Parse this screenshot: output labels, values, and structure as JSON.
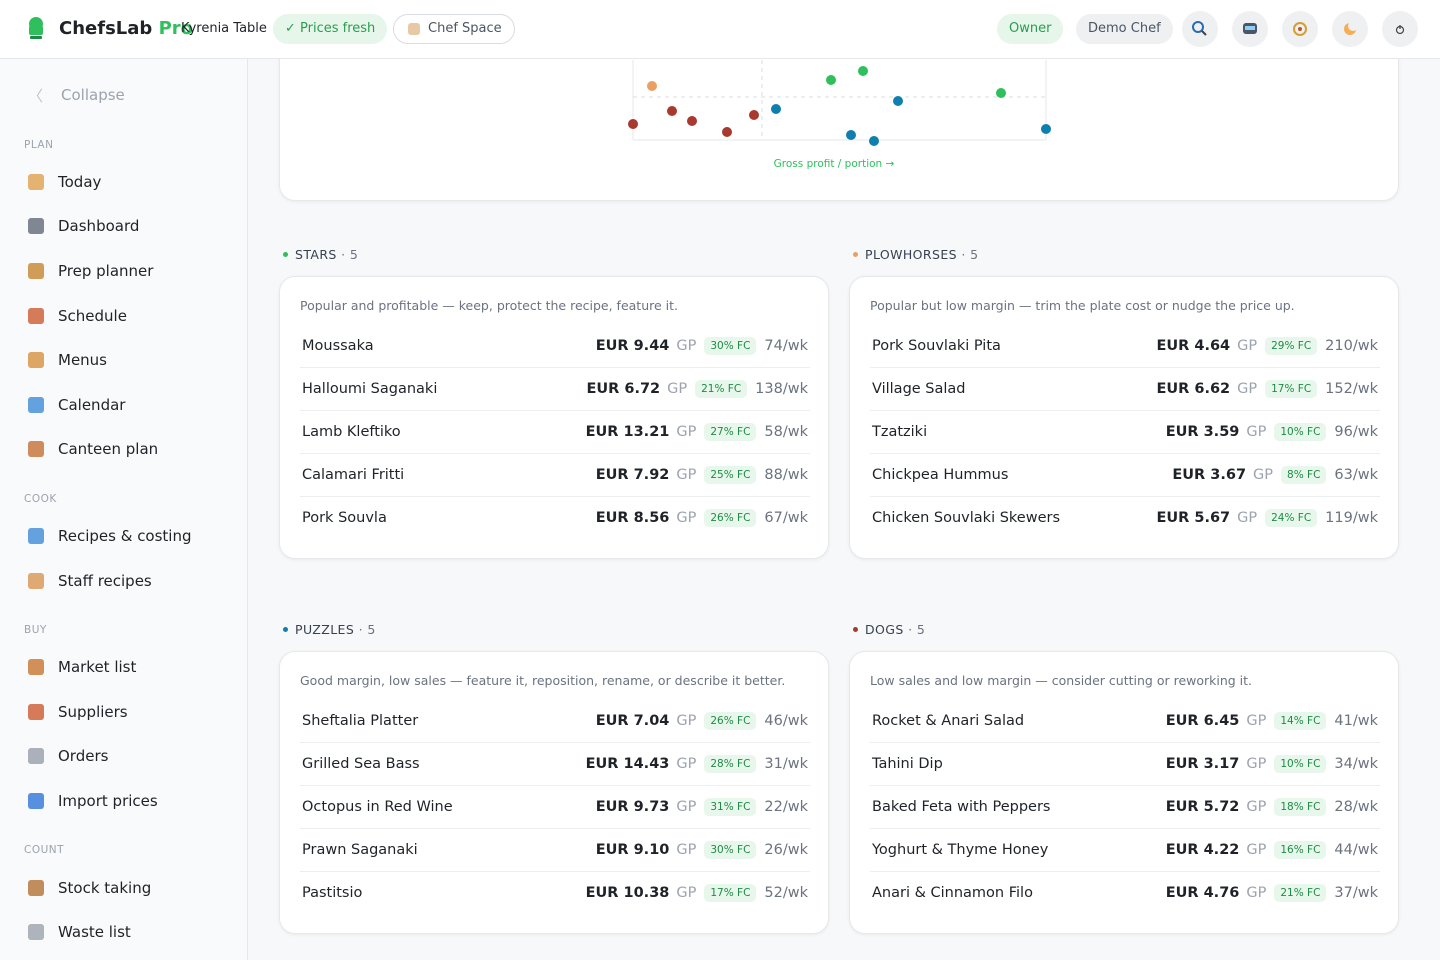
{
  "header": {
    "brand": "ChefsLab",
    "brand_suffix": "Pro",
    "location": "Kyrenia Table",
    "status": "✓ Prices fresh",
    "space": "Chef Space",
    "role": "Owner",
    "user": "Demo Chef"
  },
  "sidebar": {
    "collapse": "Collapse",
    "sections": [
      {
        "title": "PLAN",
        "items": [
          "Today",
          "Dashboard",
          "Prep planner",
          "Schedule",
          "Menus",
          "Calendar",
          "Canteen plan"
        ]
      },
      {
        "title": "COOK",
        "items": [
          "Recipes & costing",
          "Staff recipes"
        ]
      },
      {
        "title": "BUY",
        "items": [
          "Market list",
          "Suppliers",
          "Orders",
          "Import prices"
        ]
      },
      {
        "title": "COUNT",
        "items": [
          "Stock taking",
          "Waste list"
        ]
      }
    ]
  },
  "chart": {
    "x_label": "Gross profit / portion →"
  },
  "gp_label": "GP",
  "separator": "·",
  "quadrants": [
    {
      "name": "STARS",
      "count": 5,
      "color": "#2fbf5c",
      "description": "Popular and profitable — keep, protect the recipe, feature it.",
      "items": [
        {
          "name": "Moussaka",
          "gp": "EUR 9.44",
          "fc": "30% FC",
          "sales": "74/wk"
        },
        {
          "name": "Halloumi Saganaki",
          "gp": "EUR 6.72",
          "fc": "21% FC",
          "sales": "138/wk"
        },
        {
          "name": "Lamb Kleftiko",
          "gp": "EUR 13.21",
          "fc": "27% FC",
          "sales": "58/wk"
        },
        {
          "name": "Calamari Fritti",
          "gp": "EUR 7.92",
          "fc": "25% FC",
          "sales": "88/wk"
        },
        {
          "name": "Pork Souvla",
          "gp": "EUR 8.56",
          "fc": "26% FC",
          "sales": "67/wk"
        }
      ]
    },
    {
      "name": "PLOWHORSES",
      "count": 5,
      "color": "#e8a066",
      "description": "Popular but low margin — trim the plate cost or nudge the price up.",
      "items": [
        {
          "name": "Pork Souvlaki Pita",
          "gp": "EUR 4.64",
          "fc": "29% FC",
          "sales": "210/wk"
        },
        {
          "name": "Village Salad",
          "gp": "EUR 6.62",
          "fc": "17% FC",
          "sales": "152/wk"
        },
        {
          "name": "Tzatziki",
          "gp": "EUR 3.59",
          "fc": "10% FC",
          "sales": "96/wk"
        },
        {
          "name": "Chickpea Hummus",
          "gp": "EUR 3.67",
          "fc": "8% FC",
          "sales": "63/wk"
        },
        {
          "name": "Chicken Souvlaki Skewers",
          "gp": "EUR 5.67",
          "fc": "24% FC",
          "sales": "119/wk"
        }
      ]
    },
    {
      "name": "PUZZLES",
      "count": 5,
      "color": "#0f7fb0",
      "description": "Good margin, low sales — feature it, reposition, rename, or describe it better.",
      "items": [
        {
          "name": "Sheftalia Platter",
          "gp": "EUR 7.04",
          "fc": "26% FC",
          "sales": "46/wk"
        },
        {
          "name": "Grilled Sea Bass",
          "gp": "EUR 14.43",
          "fc": "28% FC",
          "sales": "31/wk"
        },
        {
          "name": "Octopus in Red Wine",
          "gp": "EUR 9.73",
          "fc": "31% FC",
          "sales": "22/wk"
        },
        {
          "name": "Prawn Saganaki",
          "gp": "EUR 9.10",
          "fc": "30% FC",
          "sales": "26/wk"
        },
        {
          "name": "Pastitsio",
          "gp": "EUR 10.38",
          "fc": "17% FC",
          "sales": "52/wk"
        }
      ]
    },
    {
      "name": "DOGS",
      "count": 5,
      "color": "#a8392f",
      "description": "Low sales and low margin — consider cutting or reworking it.",
      "items": [
        {
          "name": "Rocket & Anari Salad",
          "gp": "EUR 6.45",
          "fc": "14% FC",
          "sales": "41/wk"
        },
        {
          "name": "Tahini Dip",
          "gp": "EUR 3.17",
          "fc": "10% FC",
          "sales": "34/wk"
        },
        {
          "name": "Baked Feta with Peppers",
          "gp": "EUR 5.72",
          "fc": "18% FC",
          "sales": "28/wk"
        },
        {
          "name": "Yoghurt & Thyme Honey",
          "gp": "EUR 4.22",
          "fc": "16% FC",
          "sales": "44/wk"
        },
        {
          "name": "Anari & Cinnamon Filo",
          "gp": "EUR 4.76",
          "fc": "21% FC",
          "sales": "37/wk"
        }
      ]
    }
  ]
}
